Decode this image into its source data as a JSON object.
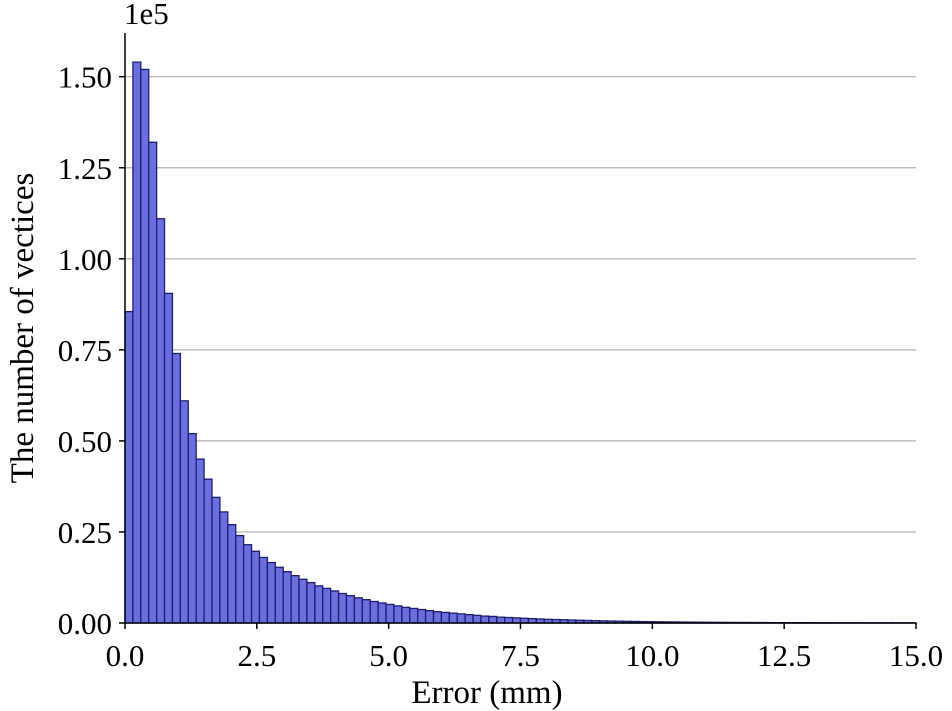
{
  "chart_data": {
    "type": "bar",
    "title": "",
    "xlabel": "Error (mm)",
    "ylabel": "The number of vectices",
    "y_multiplier_label": "1e5",
    "xlim": [
      0,
      15
    ],
    "ylim": [
      0,
      1.62
    ],
    "y_scale_note": "values in units of 1e5",
    "bin_width": 0.15,
    "grid": "horizontal",
    "bar_color": "#6b6ee0",
    "edge_color": "#1e1e6e",
    "grid_color": "#b0b0b0",
    "x_ticks": [
      "0.0",
      "2.5",
      "5.0",
      "7.5",
      "10.0",
      "12.5",
      "15.0"
    ],
    "x_tick_values": [
      0,
      2.5,
      5,
      7.5,
      10,
      12.5,
      15
    ],
    "y_ticks": [
      "0.00",
      "0.25",
      "0.50",
      "0.75",
      "1.00",
      "1.25",
      "1.50"
    ],
    "y_tick_values": [
      0,
      0.25,
      0.5,
      0.75,
      1.0,
      1.25,
      1.5
    ],
    "values": [
      0.855,
      1.54,
      1.52,
      1.32,
      1.11,
      0.905,
      0.74,
      0.61,
      0.52,
      0.45,
      0.395,
      0.345,
      0.305,
      0.27,
      0.24,
      0.215,
      0.197,
      0.18,
      0.166,
      0.153,
      0.141,
      0.13,
      0.12,
      0.111,
      0.102,
      0.095,
      0.088,
      0.081,
      0.075,
      0.069,
      0.064,
      0.059,
      0.055,
      0.051,
      0.047,
      0.043,
      0.04,
      0.037,
      0.034,
      0.031,
      0.029,
      0.027,
      0.025,
      0.023,
      0.021,
      0.019,
      0.018,
      0.016,
      0.015,
      0.014,
      0.013,
      0.012,
      0.011,
      0.01,
      0.0095,
      0.009,
      0.0082,
      0.0075,
      0.007,
      0.0064,
      0.0058,
      0.0054,
      0.005,
      0.0046,
      0.0042,
      0.0039,
      0.0036,
      0.0033,
      0.003,
      0.0028,
      0.0026,
      0.0024,
      0.0022,
      0.002,
      0.0019,
      0.0018,
      0.0016,
      0.0015,
      0.0014,
      0.0013,
      0.0012,
      0.0011,
      0.001,
      0.001,
      0.0009,
      0.0008,
      0.0008,
      0.0007,
      0.0007,
      0.0006,
      0.0006,
      0.0005,
      0.0005,
      0.0005,
      0.0004,
      0.0004,
      0.0004,
      0.0003,
      0.0003,
      0.0003
    ]
  }
}
